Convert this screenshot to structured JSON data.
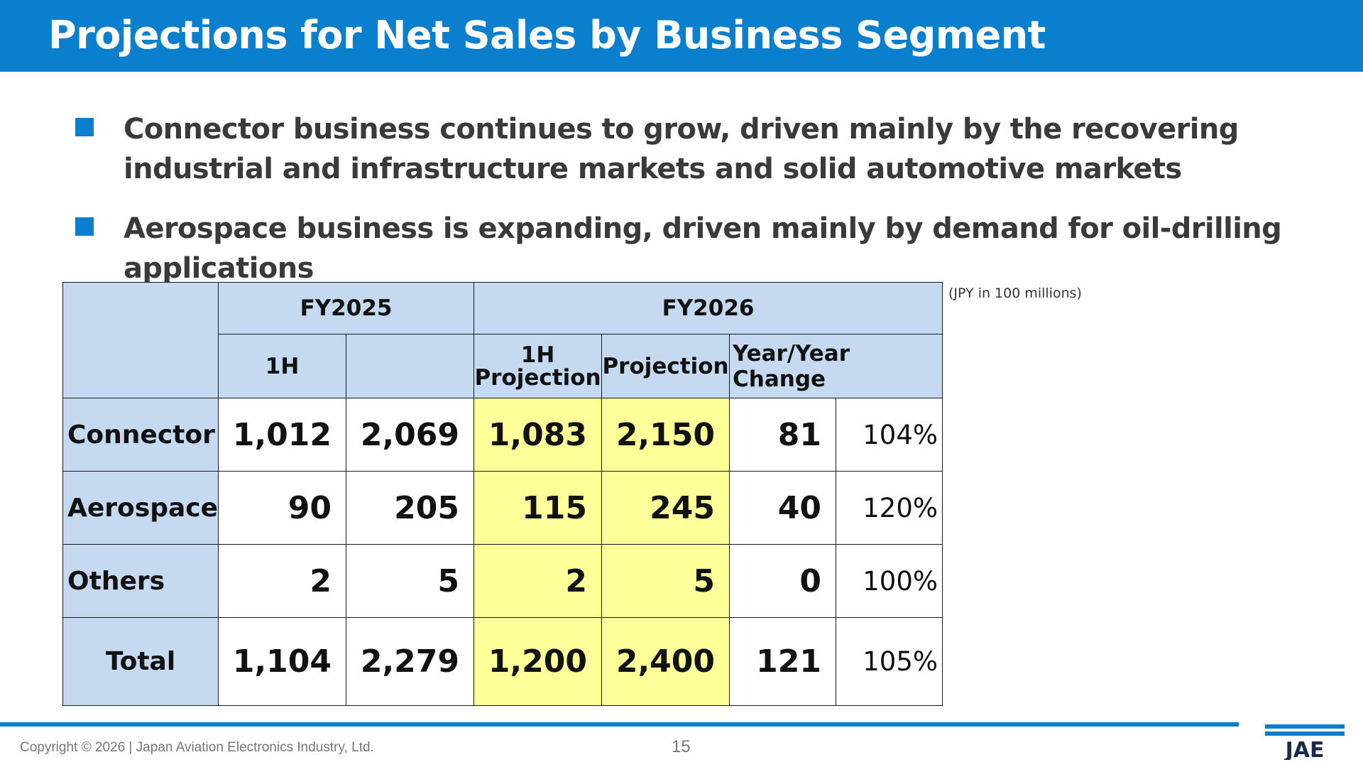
{
  "title": "Projections for Net Sales by Business Segment",
  "bullets": [
    "Connector business continues to grow, driven mainly by the recovering industrial  and infrastructure markets and solid automotive markets",
    "Aerospace business is expanding, driven mainly by demand for oil-drilling applications"
  ],
  "unit_note": "(JPY in 100 millions)",
  "table": {
    "header": {
      "fy2025": "FY2025",
      "fy2026": "FY2026",
      "fy2025_1h": "1H",
      "fy2026_1h_projection": "1H\nProjection",
      "fy2026_projection": "Projection",
      "yoy_change": "Year/Year Change"
    },
    "rows": [
      {
        "label": "Connector",
        "fy2025_1h": "1,012",
        "fy2025_full": "2,069",
        "fy2026_1h_proj": "1,083",
        "fy2026_proj": "2,150",
        "change": "81",
        "change_pct": "104%"
      },
      {
        "label": "Aerospace",
        "fy2025_1h": "90",
        "fy2025_full": "205",
        "fy2026_1h_proj": "115",
        "fy2026_proj": "245",
        "change": "40",
        "change_pct": "120%"
      },
      {
        "label": "Others",
        "fy2025_1h": "2",
        "fy2025_full": "5",
        "fy2026_1h_proj": "2",
        "fy2026_proj": "5",
        "change": "0",
        "change_pct": "100%"
      },
      {
        "label": "Total",
        "fy2025_1h": "1,104",
        "fy2025_full": "2,279",
        "fy2026_1h_proj": "1,200",
        "fy2026_proj": "2,400",
        "change": "121",
        "change_pct": "105%"
      }
    ]
  },
  "footer": {
    "copyright": "Copyright © 2026 | Japan Aviation Electronics Industry, Ltd.",
    "page_number": "15",
    "logo_text": "JAE"
  },
  "colors": {
    "brand_blue": "#0a7fcd",
    "header_fill": "#c5d9f1",
    "projection_fill": "#ffff99"
  }
}
